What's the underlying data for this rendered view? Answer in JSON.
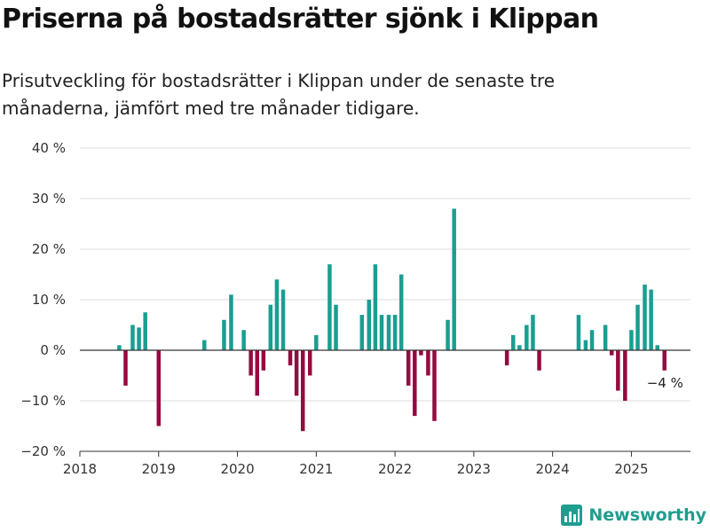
{
  "title": "Priserna på bostadsrätter sjönk i Klippan",
  "subtitle": "Prisutveckling för bostadsrätter i Klippan under de senaste tre månaderna, jämfört med tre månader tidigare.",
  "brand": "Newsworthy",
  "colors": {
    "positive": "#1a9e91",
    "negative": "#950a40",
    "grid": "#dddddd",
    "axis": "#333333",
    "brand": "#1f9d8f"
  },
  "chart_data": {
    "type": "bar",
    "title": "Priserna på bostadsrätter sjönk i Klippan",
    "xlabel": "",
    "ylabel": "",
    "xlim": [
      2018.0,
      2025.75
    ],
    "ylim": [
      -20,
      40
    ],
    "y_ticks": [
      -20,
      -10,
      0,
      10,
      20,
      30,
      40
    ],
    "y_tick_labels": [
      "−20 %",
      "−10 %",
      "0 %",
      "10 %",
      "20 %",
      "30 %",
      "40 %"
    ],
    "x_ticks": [
      2018,
      2019,
      2020,
      2021,
      2022,
      2023,
      2024,
      2025
    ],
    "x_tick_labels": [
      "2018",
      "2019",
      "2020",
      "2021",
      "2022",
      "2023",
      "2024",
      "2025"
    ],
    "grid": true,
    "legend": "none",
    "series": [
      {
        "x": [
          2018.5,
          2018.58,
          2018.67,
          2018.75,
          2018.83,
          2019.0,
          2019.58,
          2019.83,
          2019.92,
          2020.08,
          2020.17,
          2020.25,
          2020.33,
          2020.42,
          2020.5,
          2020.58,
          2020.67,
          2020.75,
          2020.83,
          2020.92,
          2021.0,
          2021.17,
          2021.25,
          2021.58,
          2021.67,
          2021.75,
          2021.83,
          2021.92,
          2022.0,
          2022.08,
          2022.17,
          2022.25,
          2022.33,
          2022.42,
          2022.5,
          2022.67,
          2022.75,
          2023.42,
          2023.5,
          2023.58,
          2023.67,
          2023.75,
          2023.83,
          2024.33,
          2024.42,
          2024.5,
          2024.67,
          2024.75,
          2024.83,
          2024.92,
          2025.0,
          2025.08,
          2025.17,
          2025.25,
          2025.33,
          2025.42
        ],
        "values": [
          1,
          -7,
          5,
          4.5,
          7.5,
          -15,
          2,
          6,
          11,
          4,
          -5,
          -9,
          -4,
          9,
          14,
          12,
          -3,
          -9,
          -16,
          -5,
          3,
          17,
          9,
          7,
          10,
          17,
          7,
          7,
          7,
          15,
          -7,
          -13,
          -1,
          -5,
          -14,
          6,
          28,
          -3,
          3,
          1,
          5,
          7,
          -4,
          7,
          2,
          4,
          5,
          -1,
          -8,
          -10,
          4,
          9,
          13,
          12,
          1,
          -4
        ]
      }
    ],
    "annotations": [
      {
        "x": 2025.42,
        "y": -4,
        "text": "−4 %"
      }
    ]
  }
}
